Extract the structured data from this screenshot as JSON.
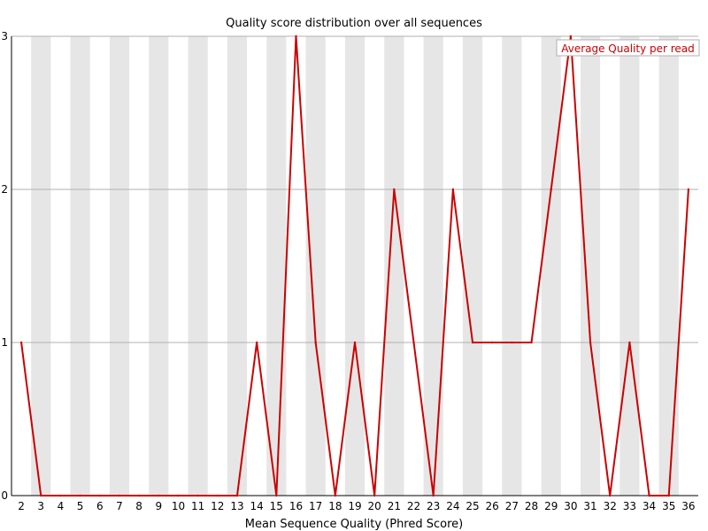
{
  "chart_data": {
    "type": "line",
    "title": "Quality score distribution over all sequences",
    "xlabel": "Mean Sequence Quality (Phred Score)",
    "ylabel": "",
    "x": [
      2,
      3,
      4,
      5,
      6,
      7,
      8,
      9,
      10,
      11,
      12,
      13,
      14,
      15,
      16,
      17,
      18,
      19,
      20,
      21,
      22,
      23,
      24,
      25,
      26,
      27,
      28,
      29,
      30,
      31,
      32,
      33,
      34,
      35,
      36
    ],
    "ylim": [
      0,
      3
    ],
    "yticks": [
      0,
      1,
      2,
      3
    ],
    "series": [
      {
        "name": "Average Quality per read",
        "color": "#cc0000",
        "values": [
          1,
          0,
          0,
          0,
          0,
          0,
          0,
          0,
          0,
          0,
          0,
          0,
          1,
          0,
          3,
          1,
          0,
          1,
          0,
          2,
          1,
          0,
          2,
          1,
          1,
          1,
          1,
          2,
          3,
          1,
          0,
          1,
          0,
          0,
          2
        ]
      }
    ],
    "legend_position": "top-right",
    "grid": "horizontal",
    "band_color": "#e6e6e6",
    "grid_color": "#b0b0b0"
  }
}
